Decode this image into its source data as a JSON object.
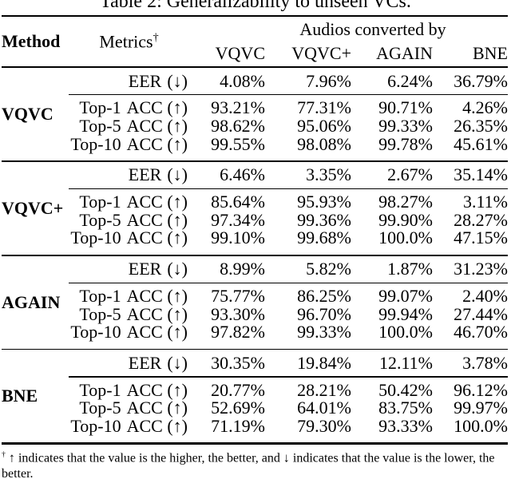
{
  "title": "Table 2: Generalizability to unseen VCs.",
  "header": {
    "method": "Method",
    "metrics": "Metrics",
    "metrics_marker": "†",
    "group": "Audios converted by",
    "columns": [
      "VQVC",
      "VQVC+",
      "AGAIN",
      "BNE"
    ]
  },
  "blocks": [
    {
      "method": "VQVC",
      "rows": [
        {
          "metric": "EER",
          "suffix": "(↓)",
          "values": [
            "4.08%",
            "7.96%",
            "6.24%",
            "36.79%"
          ]
        },
        {
          "metric": "Top-1",
          "suffix": "ACC (↑)",
          "values": [
            "93.21%",
            "77.31%",
            "90.71%",
            "4.26%"
          ]
        },
        {
          "metric": "Top-5",
          "suffix": "ACC (↑)",
          "values": [
            "98.62%",
            "95.06%",
            "99.33%",
            "26.35%"
          ]
        },
        {
          "metric": "Top-10",
          "suffix": "ACC (↑)",
          "values": [
            "99.55%",
            "98.08%",
            "99.78%",
            "45.61%"
          ]
        }
      ]
    },
    {
      "method": "VQVC+",
      "rows": [
        {
          "metric": "EER",
          "suffix": "(↓)",
          "values": [
            "6.46%",
            "3.35%",
            "2.67%",
            "35.14%"
          ]
        },
        {
          "metric": "Top-1",
          "suffix": "ACC (↑)",
          "values": [
            "85.64%",
            "95.93%",
            "98.27%",
            "3.11%"
          ]
        },
        {
          "metric": "Top-5",
          "suffix": "ACC (↑)",
          "values": [
            "97.34%",
            "99.36%",
            "99.90%",
            "28.27%"
          ]
        },
        {
          "metric": "Top-10",
          "suffix": "ACC (↑)",
          "values": [
            "99.10%",
            "99.68%",
            "100.0%",
            "47.15%"
          ]
        }
      ]
    },
    {
      "method": "AGAIN",
      "rows": [
        {
          "metric": "EER",
          "suffix": "(↓)",
          "values": [
            "8.99%",
            "5.82%",
            "1.87%",
            "31.23%"
          ]
        },
        {
          "metric": "Top-1",
          "suffix": "ACC (↑)",
          "values": [
            "75.77%",
            "86.25%",
            "99.07%",
            "2.40%"
          ]
        },
        {
          "metric": "Top-5",
          "suffix": "ACC (↑)",
          "values": [
            "93.30%",
            "96.70%",
            "99.94%",
            "27.44%"
          ]
        },
        {
          "metric": "Top-10",
          "suffix": "ACC (↑)",
          "values": [
            "97.82%",
            "99.33%",
            "100.0%",
            "46.70%"
          ]
        }
      ]
    },
    {
      "method": "BNE",
      "rows": [
        {
          "metric": "EER",
          "suffix": "(↓)",
          "values": [
            "30.35%",
            "19.84%",
            "12.11%",
            "3.78%"
          ]
        },
        {
          "metric": "Top-1",
          "suffix": "ACC (↑)",
          "values": [
            "20.77%",
            "28.21%",
            "50.42%",
            "96.12%"
          ]
        },
        {
          "metric": "Top-5",
          "suffix": "ACC (↑)",
          "values": [
            "52.69%",
            "64.01%",
            "83.75%",
            "99.97%"
          ]
        },
        {
          "metric": "Top-10",
          "suffix": "ACC (↑)",
          "values": [
            "71.19%",
            "79.30%",
            "93.33%",
            "100.0%"
          ]
        }
      ]
    }
  ],
  "footnote": {
    "marker": "†",
    "text": "↑ indicates that the value is the higher, the better, and ↓ indicates that the value is the lower, the better."
  }
}
